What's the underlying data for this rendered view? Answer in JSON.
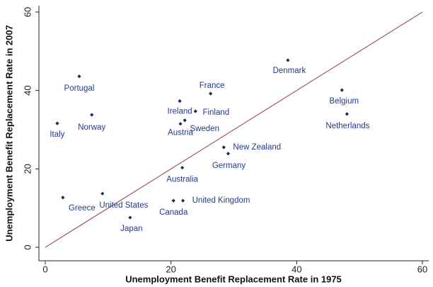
{
  "chart_data": {
    "type": "scatter",
    "xlabel": "Unemployment Benefit Replacement Rate in 1975",
    "ylabel": "Unemployment Benefit Replacement Rate in 2007",
    "xlim": [
      0,
      60
    ],
    "ylim": [
      0,
      60
    ],
    "xticks": [
      0,
      20,
      40,
      60
    ],
    "yticks": [
      0,
      20,
      40,
      60
    ],
    "color": "#1a2a5a",
    "line_color": "#a05a5a",
    "series": [
      {
        "name": null,
        "labels": [
          "Portugal",
          "Norway",
          "Italy",
          "Ireland",
          "Finland",
          "Austria",
          "Sweden",
          "France",
          "Denmark",
          "Belgium",
          "Netherlands",
          "New Zealand",
          "Germany",
          "Australia",
          "Greece",
          "United States",
          "Canada",
          "United Kingdom",
          "Japan"
        ],
        "x": [
          5.4,
          7.4,
          1.9,
          21.4,
          23.9,
          21.5,
          22.2,
          26.3,
          38.6,
          47.2,
          48.0,
          28.4,
          29.1,
          21.8,
          2.8,
          9.1,
          20.4,
          21.9,
          13.5
        ],
        "values": [
          43.6,
          33.8,
          31.6,
          37.3,
          34.7,
          31.5,
          32.4,
          39.2,
          47.7,
          40.1,
          34.0,
          25.5,
          23.9,
          20.3,
          12.7,
          13.7,
          11.9,
          11.9,
          7.6
        ]
      }
    ]
  }
}
